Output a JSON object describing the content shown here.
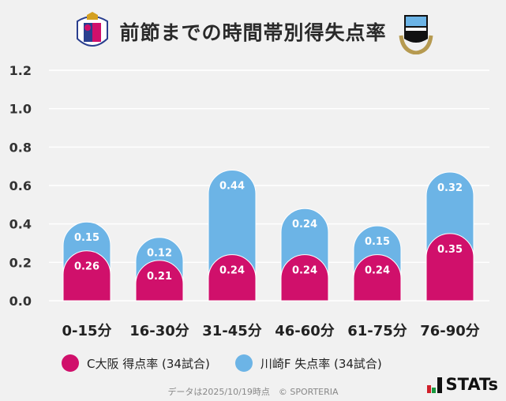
{
  "title": "前節までの時間帯別得失点率",
  "logos": {
    "left": "Cerezo Osaka crest",
    "right": "Kawasaki Frontale crest"
  },
  "chart_data": {
    "type": "bar",
    "stacked": true,
    "categories": [
      "0-15分",
      "16-30分",
      "31-45分",
      "46-60分",
      "61-75分",
      "76-90分"
    ],
    "series": [
      {
        "name": "C大阪 得点率 (34試合)",
        "color": "#d0106b",
        "values": [
          0.26,
          0.21,
          0.24,
          0.24,
          0.24,
          0.35
        ]
      },
      {
        "name": "川崎F 失点率 (34試合)",
        "color": "#6cb4e6",
        "values": [
          0.15,
          0.12,
          0.44,
          0.24,
          0.15,
          0.32
        ]
      }
    ],
    "ylim": [
      0,
      1.2
    ],
    "yticks": [
      "0.0",
      "0.2",
      "0.4",
      "0.6",
      "0.8",
      "1.0",
      "1.2"
    ],
    "grid": true,
    "legend": "bottom"
  },
  "legend": {
    "home": "C大阪 得点率 (34試合)",
    "away": "川崎F 失点率 (34試合)"
  },
  "footer": "データは2025/10/19時点　© SPORTERIA",
  "brand": "STATs"
}
